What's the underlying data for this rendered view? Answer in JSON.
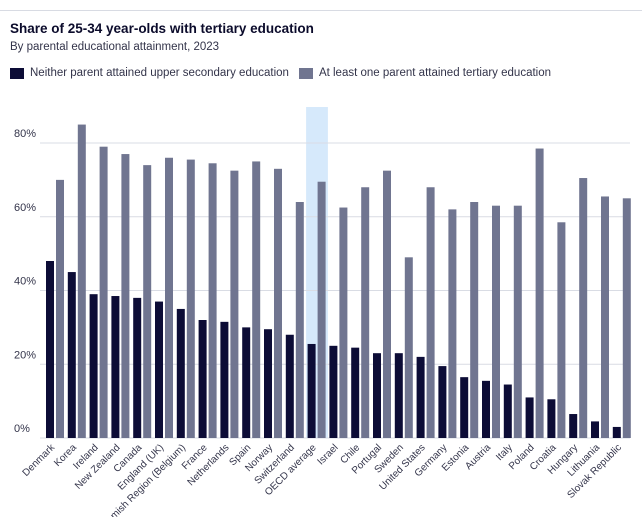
{
  "title": "Share of 25-34 year-olds with tertiary education",
  "subtitle": "By parental educational attainment, 2023",
  "colors": {
    "series1": "#0c0c36",
    "series2": "#707590",
    "highlight": "#d6e9fb",
    "grid": "#d9dce4"
  },
  "chart_data": {
    "type": "bar",
    "title": "Share of 25-34 year-olds with tertiary education",
    "subtitle": "By parental educational attainment, 2023",
    "xlabel": "",
    "ylabel": "",
    "ylim": [
      0,
      80
    ],
    "yticks": [
      0,
      20,
      40,
      60,
      80
    ],
    "ytick_labels": [
      "0%",
      "20%",
      "40%",
      "60%",
      "80%"
    ],
    "highlight_category": "OECD average",
    "legend_position": "top-left",
    "categories": [
      "Denmark",
      "Korea",
      "Ireland",
      "New Zealand",
      "Canada",
      "England (UK)",
      "Flemish Region (Belgium)",
      "France",
      "Netherlands",
      "Spain",
      "Norway",
      "Switzerland",
      "OECD average",
      "Israel",
      "Chile",
      "Portugal",
      "Sweden",
      "United States",
      "Germany",
      "Estonia",
      "Austria",
      "Italy",
      "Poland",
      "Croatia",
      "Hungary",
      "Lithuania",
      "Slovak Republic"
    ],
    "series": [
      {
        "name": "Neither parent attained upper secondary education",
        "values": [
          48,
          45,
          39,
          38.5,
          38,
          37,
          35,
          32,
          31.5,
          30,
          29.5,
          28,
          25.5,
          25,
          24.5,
          23,
          23,
          22,
          19.5,
          16.5,
          15.5,
          14.5,
          11,
          10.5,
          6.5,
          4.5,
          3
        ]
      },
      {
        "name": "At least one parent attained tertiary education",
        "values": [
          70,
          85,
          79,
          77,
          74,
          76,
          75.5,
          74.5,
          72.5,
          75,
          73,
          64,
          69.5,
          62.5,
          68,
          72.5,
          49,
          68,
          62,
          64,
          63,
          63,
          78.5,
          58.5,
          70.5,
          65.5,
          65
        ]
      }
    ]
  }
}
